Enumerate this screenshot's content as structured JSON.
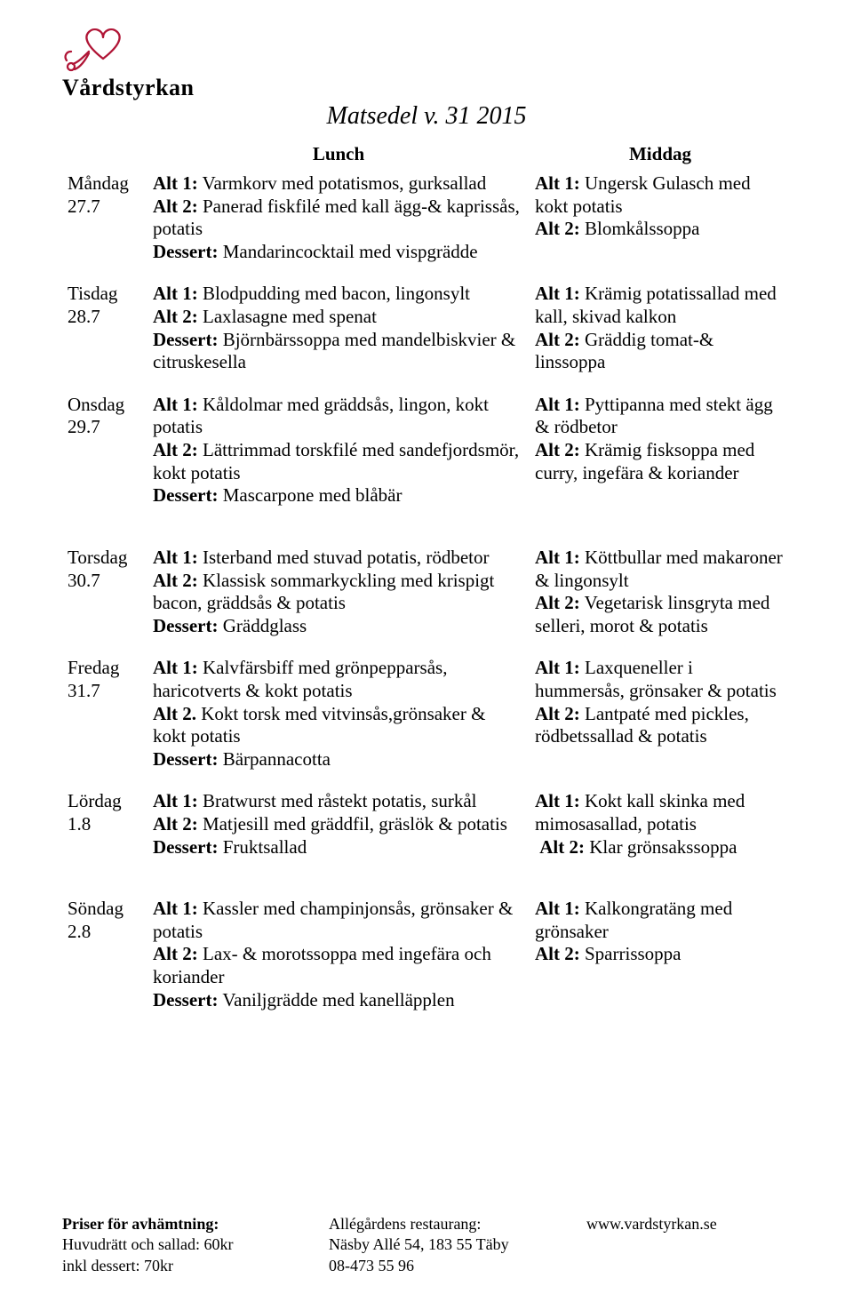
{
  "logo_text": "Vårdstyrkan",
  "title": "Matsedel v. 31 2015",
  "header": {
    "lunch": "Lunch",
    "dinner": "Middag"
  },
  "labels": {
    "alt1": "Alt 1:",
    "alt2": "Alt 2:",
    "alt2dot": "Alt 2.",
    "dessert": "Dessert:"
  },
  "days": [
    {
      "name": "Måndag",
      "date": "27.7",
      "lunch": {
        "alt1": "Varmkorv med potatismos, gurksallad",
        "alt2": "Panerad fiskfilé med kall ägg-& kaprissås, potatis",
        "dessert": "Mandarincocktail med vispgrädde"
      },
      "dinner": {
        "alt1": "Ungersk Gulasch med kokt potatis",
        "alt2": "Blomkålssoppa"
      }
    },
    {
      "name": "Tisdag",
      "date": "28.7",
      "lunch": {
        "alt1": "Blodpudding med bacon, lingonsylt",
        "alt2": "Laxlasagne med spenat",
        "dessert": "Björnbärssoppa med mandelbiskvier & citruskesella"
      },
      "dinner": {
        "alt1": "Krämig potatissallad med kall, skivad kalkon",
        "alt2": "Gräddig tomat-& linssoppa"
      }
    },
    {
      "name": "Onsdag",
      "date": "29.7",
      "lunch": {
        "alt1": "Kåldolmar med gräddsås, lingon, kokt potatis",
        "alt2": "Lättrimmad torskfilé med sandefjordsmör, kokt potatis",
        "dessert": "Mascarpone med blåbär"
      },
      "dinner": {
        "alt1": "Pyttipanna med stekt ägg & rödbetor",
        "alt2": "Krämig fisksoppa med curry, ingefära & koriander"
      }
    },
    {
      "name": "Torsdag",
      "date": "30.7",
      "lunch": {
        "alt1": "Isterband med stuvad potatis, rödbetor",
        "alt2": "Klassisk sommarkyckling med krispigt bacon, gräddsås & potatis",
        "dessert": "Gräddglass"
      },
      "dinner": {
        "alt1": "Köttbullar med makaroner & lingonsylt",
        "alt2": "Vegetarisk linsgryta med selleri, morot & potatis"
      }
    },
    {
      "name": "Fredag",
      "date": "31.7",
      "lunch": {
        "alt1": "Kalvfärsbiff med grönpepparsås, haricotverts & kokt potatis",
        "alt2_label_variant": true,
        "alt2": "Kokt torsk med vitvinsås,grönsaker & kokt potatis",
        "dessert": "Bärpannacotta"
      },
      "dinner": {
        "alt1": "Laxqueneller i hummersås, grönsaker & potatis",
        "alt2": "Lantpaté med pickles, rödbetssallad & potatis"
      }
    },
    {
      "name": "Lördag",
      "date": "1.8",
      "lunch": {
        "alt1": "Bratwurst med råstekt potatis, surkål",
        "alt2": "Matjesill med gräddfil, gräslök & potatis",
        "dessert": "Fruktsallad"
      },
      "dinner": {
        "alt1": "Kokt kall skinka med mimosasallad, potatis",
        "alt2_leading_space": true,
        "alt2": "Klar grönsakssoppa"
      }
    },
    {
      "name": "Söndag",
      "date": "2.8",
      "lunch": {
        "alt1": "Kassler med champinjonsås, grönsaker & potatis",
        "alt2": "Lax- & morotssoppa med ingefära och koriander",
        "dessert": "Vaniljgrädde med kanelläpplen"
      },
      "dinner": {
        "alt1": "Kalkongratäng med grönsaker",
        "alt2": "Sparrissoppa"
      }
    }
  ],
  "footer": {
    "prices_heading": "Priser för avhämtning:",
    "price_main": "Huvudrätt och sallad: 60kr",
    "price_dessert": "inkl dessert: 70kr",
    "restaurant_name": "Allégårdens restaurang:",
    "restaurant_addr": "Näsby Allé 54, 183 55 Täby",
    "restaurant_phone": "08-473 55 96",
    "website": "www.vardstyrkan.se"
  },
  "colors": {
    "text": "#000000",
    "background": "#ffffff",
    "logo": "#b01536"
  }
}
